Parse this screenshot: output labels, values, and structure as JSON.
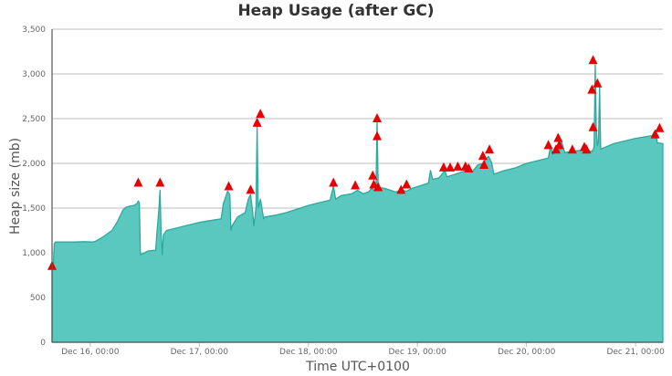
{
  "chart_data": {
    "type": "area",
    "title": "Heap Usage (after GC)",
    "xlabel": "Time UTC+0100",
    "ylabel": "Heap size (mb)",
    "ylim": [
      0,
      3500
    ],
    "y_ticks": [
      "0",
      "500",
      "1,000",
      "1,500",
      "2,000",
      "2,500",
      "3,000",
      "3,500"
    ],
    "x_ticks": [
      "Dec 16, 00:00",
      "Dec 17, 00:00",
      "Dec 18, 00:00",
      "Dec 19, 00:00",
      "Dec 20, 00:00",
      "Dec 21, 00:00"
    ],
    "x_tick_positions_days": [
      0,
      1,
      2,
      3,
      4,
      5
    ],
    "x_range_days": [
      -0.35,
      5.25
    ],
    "grid": true,
    "legend": "none",
    "colors": {
      "area_fill": "#5bc8c0",
      "area_line": "#2fa89d",
      "marker": "#e60000",
      "grid": "#bdbdbd",
      "axis": "#555555"
    },
    "series": [
      {
        "points": [
          [
            -0.35,
            0
          ],
          [
            -0.35,
            800
          ],
          [
            -0.34,
            820
          ],
          [
            -0.33,
            1100
          ],
          [
            -0.32,
            1120
          ],
          [
            -0.25,
            1120
          ],
          [
            -0.15,
            1120
          ],
          [
            -0.05,
            1125
          ],
          [
            0.02,
            1120
          ],
          [
            0.05,
            1130
          ],
          [
            0.12,
            1180
          ],
          [
            0.2,
            1250
          ],
          [
            0.25,
            1350
          ],
          [
            0.3,
            1480
          ],
          [
            0.33,
            1510
          ],
          [
            0.36,
            1520
          ],
          [
            0.4,
            1530
          ],
          [
            0.43,
            1550
          ],
          [
            0.44,
            1580
          ],
          [
            0.45,
            1560
          ],
          [
            0.46,
            980
          ],
          [
            0.5,
            1000
          ],
          [
            0.53,
            1020
          ],
          [
            0.6,
            1030
          ],
          [
            0.61,
            1200
          ],
          [
            0.63,
            1500
          ],
          [
            0.64,
            1700
          ],
          [
            0.65,
            1200
          ],
          [
            0.66,
            980
          ],
          [
            0.67,
            1200
          ],
          [
            0.7,
            1250
          ],
          [
            0.8,
            1280
          ],
          [
            0.9,
            1310
          ],
          [
            1.0,
            1340
          ],
          [
            1.1,
            1360
          ],
          [
            1.2,
            1380
          ],
          [
            1.22,
            1550
          ],
          [
            1.26,
            1690
          ],
          [
            1.28,
            1650
          ],
          [
            1.29,
            1250
          ],
          [
            1.3,
            1300
          ],
          [
            1.35,
            1400
          ],
          [
            1.42,
            1450
          ],
          [
            1.45,
            1600
          ],
          [
            1.47,
            1650
          ],
          [
            1.49,
            1450
          ],
          [
            1.5,
            1300
          ],
          [
            1.52,
            1500
          ],
          [
            1.53,
            2420
          ],
          [
            1.54,
            1500
          ],
          [
            1.56,
            1600
          ],
          [
            1.58,
            1450
          ],
          [
            1.59,
            1380
          ],
          [
            1.6,
            1400
          ],
          [
            1.7,
            1420
          ],
          [
            1.8,
            1450
          ],
          [
            1.9,
            1490
          ],
          [
            2.0,
            1530
          ],
          [
            2.1,
            1560
          ],
          [
            2.2,
            1590
          ],
          [
            2.23,
            1750
          ],
          [
            2.25,
            1600
          ],
          [
            2.3,
            1640
          ],
          [
            2.4,
            1660
          ],
          [
            2.45,
            1700
          ],
          [
            2.5,
            1660
          ],
          [
            2.55,
            1680
          ],
          [
            2.58,
            1720
          ],
          [
            2.6,
            1700
          ],
          [
            2.62,
            1720
          ],
          [
            2.63,
            2480
          ],
          [
            2.64,
            1730
          ],
          [
            2.7,
            1720
          ],
          [
            2.8,
            1680
          ],
          [
            2.85,
            1700
          ],
          [
            2.9,
            1690
          ],
          [
            2.95,
            1720
          ],
          [
            3.0,
            1740
          ],
          [
            3.05,
            1760
          ],
          [
            3.1,
            1780
          ],
          [
            3.12,
            1920
          ],
          [
            3.14,
            1820
          ],
          [
            3.2,
            1840
          ],
          [
            3.25,
            1920
          ],
          [
            3.27,
            1850
          ],
          [
            3.35,
            1880
          ],
          [
            3.45,
            1920
          ],
          [
            3.5,
            1900
          ],
          [
            3.55,
            1980
          ],
          [
            3.6,
            2000
          ],
          [
            3.65,
            2080
          ],
          [
            3.68,
            2010
          ],
          [
            3.7,
            1880
          ],
          [
            3.75,
            1900
          ],
          [
            3.8,
            1920
          ],
          [
            3.9,
            1950
          ],
          [
            4.0,
            2000
          ],
          [
            4.1,
            2030
          ],
          [
            4.2,
            2060
          ],
          [
            4.22,
            2200
          ],
          [
            4.24,
            2100
          ],
          [
            4.3,
            2140
          ],
          [
            4.32,
            2250
          ],
          [
            4.35,
            2120
          ],
          [
            4.45,
            2140
          ],
          [
            4.55,
            2150
          ],
          [
            4.6,
            2130
          ],
          [
            4.62,
            2180
          ],
          [
            4.63,
            3100
          ],
          [
            4.64,
            2380
          ],
          [
            4.65,
            2200
          ],
          [
            4.66,
            2250
          ],
          [
            4.67,
            2860
          ],
          [
            4.68,
            2160
          ],
          [
            4.7,
            2170
          ],
          [
            4.8,
            2220
          ],
          [
            4.9,
            2250
          ],
          [
            5.0,
            2280
          ],
          [
            5.1,
            2300
          ],
          [
            5.15,
            2310
          ],
          [
            5.18,
            2370
          ],
          [
            5.2,
            2230
          ],
          [
            5.25,
            2220
          ],
          [
            5.25,
            0
          ]
        ]
      }
    ],
    "markers": [
      [
        -0.35,
        850
      ],
      [
        0.44,
        1780
      ],
      [
        0.64,
        1780
      ],
      [
        1.27,
        1740
      ],
      [
        1.47,
        1700
      ],
      [
        1.53,
        2450
      ],
      [
        1.56,
        2550
      ],
      [
        2.23,
        1780
      ],
      [
        2.43,
        1750
      ],
      [
        2.59,
        1860
      ],
      [
        2.6,
        1760
      ],
      [
        2.63,
        2500
      ],
      [
        2.63,
        2300
      ],
      [
        2.64,
        1730
      ],
      [
        2.85,
        1700
      ],
      [
        2.9,
        1760
      ],
      [
        3.24,
        1950
      ],
      [
        3.3,
        1950
      ],
      [
        3.37,
        1960
      ],
      [
        3.44,
        1960
      ],
      [
        3.47,
        1940
      ],
      [
        3.6,
        2080
      ],
      [
        3.61,
        1980
      ],
      [
        3.66,
        2150
      ],
      [
        4.2,
        2200
      ],
      [
        4.27,
        2150
      ],
      [
        4.29,
        2280
      ],
      [
        4.3,
        2200
      ],
      [
        4.42,
        2150
      ],
      [
        4.53,
        2180
      ],
      [
        4.55,
        2150
      ],
      [
        4.6,
        2820
      ],
      [
        4.61,
        3150
      ],
      [
        4.61,
        2400
      ],
      [
        4.65,
        2890
      ],
      [
        5.18,
        2320
      ],
      [
        5.22,
        2390
      ]
    ]
  }
}
